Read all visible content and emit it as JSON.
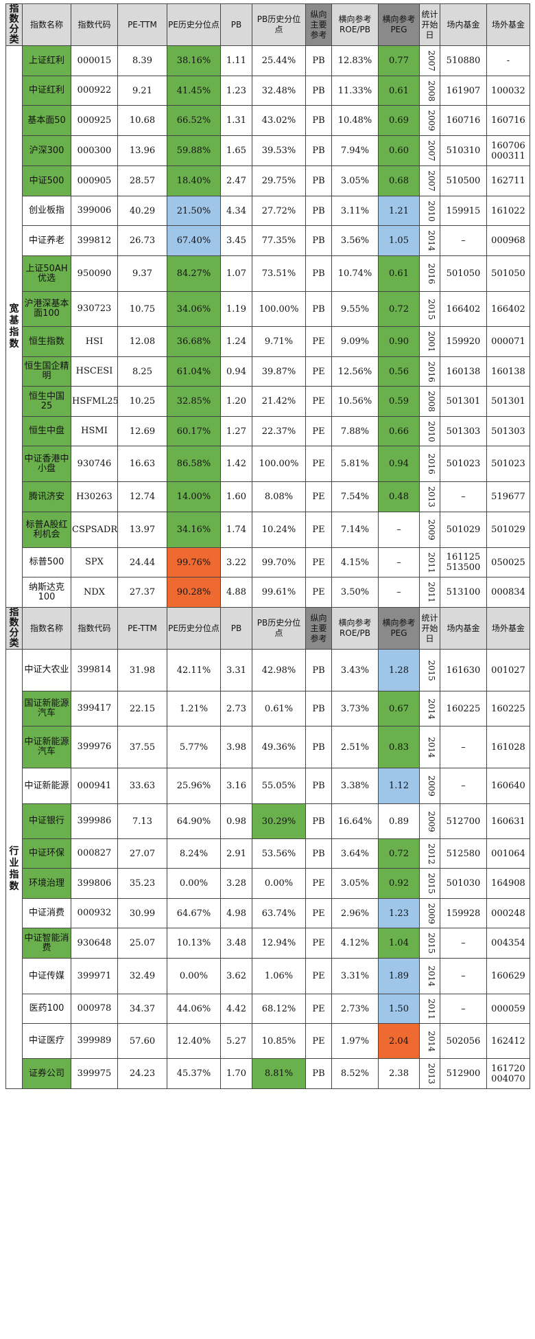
{
  "header": [
    "指数分类",
    "指数名称",
    "指数代码",
    "PE-TTM",
    "PE历史分位点",
    "PB",
    "PB历史分位点",
    "纵向主要参考",
    "横向参考ROE/PB",
    "横向参考PEG",
    "统计开始日",
    "场内基金",
    "场外基金"
  ],
  "sections": [
    {
      "category": "宽基指数",
      "rows": [
        {
          "name": "上证红利",
          "code": "000015",
          "pe": "8.39",
          "pe_pct": "38.16%",
          "pe_pct_color": "g",
          "pb": "1.11",
          "pb_pct": "25.44%",
          "pb_pct_color": "",
          "ref": "PB",
          "roe": "12.83%",
          "peg": "0.77",
          "peg_color": "g",
          "year": "2007",
          "onsite": [
            "510880"
          ],
          "offsite": [
            "-"
          ],
          "name_color": "g"
        },
        {
          "name": "中证红利",
          "code": "000922",
          "pe": "9.21",
          "pe_pct": "41.45%",
          "pe_pct_color": "g",
          "pb": "1.23",
          "pb_pct": "32.48%",
          "pb_pct_color": "",
          "ref": "PB",
          "roe": "11.33%",
          "peg": "0.61",
          "peg_color": "g",
          "year": "2008",
          "onsite": [
            "161907"
          ],
          "offsite": [
            "100032"
          ],
          "name_color": "g"
        },
        {
          "name": "基本面50",
          "code": "000925",
          "pe": "10.68",
          "pe_pct": "66.52%",
          "pe_pct_color": "g",
          "pb": "1.31",
          "pb_pct": "43.02%",
          "pb_pct_color": "",
          "ref": "PB",
          "roe": "10.48%",
          "peg": "0.69",
          "peg_color": "g",
          "year": "2009",
          "onsite": [
            "160716"
          ],
          "offsite": [
            "160716"
          ],
          "name_color": "g"
        },
        {
          "name": "沪深300",
          "code": "000300",
          "pe": "13.96",
          "pe_pct": "59.88%",
          "pe_pct_color": "g",
          "pb": "1.65",
          "pb_pct": "39.53%",
          "pb_pct_color": "",
          "ref": "PB",
          "roe": "7.94%",
          "peg": "0.60",
          "peg_color": "g",
          "year": "2007",
          "onsite": [
            "510310"
          ],
          "offsite": [
            "160706",
            "000311"
          ],
          "name_color": "g"
        },
        {
          "name": "中证500",
          "code": "000905",
          "pe": "28.57",
          "pe_pct": "18.40%",
          "pe_pct_color": "g",
          "pb": "2.47",
          "pb_pct": "29.75%",
          "pb_pct_color": "",
          "ref": "PB",
          "roe": "3.05%",
          "peg": "0.68",
          "peg_color": "g",
          "year": "2007",
          "onsite": [
            "510500"
          ],
          "offsite": [
            "162711"
          ],
          "name_color": "g"
        },
        {
          "name": "创业板指",
          "code": "399006",
          "pe": "40.29",
          "pe_pct": "21.50%",
          "pe_pct_color": "b",
          "pb": "4.34",
          "pb_pct": "27.72%",
          "pb_pct_color": "",
          "ref": "PB",
          "roe": "3.11%",
          "peg": "1.21",
          "peg_color": "b",
          "year": "2010",
          "onsite": [
            "159915"
          ],
          "offsite": [
            "161022"
          ],
          "name_color": ""
        },
        {
          "name": "中证养老",
          "code": "399812",
          "pe": "26.73",
          "pe_pct": "67.40%",
          "pe_pct_color": "b",
          "pb": "3.45",
          "pb_pct": "77.35%",
          "pb_pct_color": "",
          "ref": "PB",
          "roe": "3.56%",
          "peg": "1.05",
          "peg_color": "b",
          "year": "2014",
          "onsite": [
            "–"
          ],
          "offsite": [
            "000968"
          ],
          "name_color": ""
        },
        {
          "name": "上证50AH优选",
          "code": "950090",
          "pe": "9.37",
          "pe_pct": "84.27%",
          "pe_pct_color": "g",
          "pb": "1.07",
          "pb_pct": "73.51%",
          "pb_pct_color": "",
          "ref": "PB",
          "roe": "10.74%",
          "peg": "0.61",
          "peg_color": "g",
          "year": "2016",
          "onsite": [
            "501050"
          ],
          "offsite": [
            "501050"
          ],
          "name_color": "g"
        },
        {
          "name": "沪港深基本面100",
          "code": "930723",
          "pe": "10.75",
          "pe_pct": "34.06%",
          "pe_pct_color": "g",
          "pb": "1.19",
          "pb_pct": "100.00%",
          "pb_pct_color": "",
          "ref": "PB",
          "roe": "9.55%",
          "peg": "0.72",
          "peg_color": "g",
          "year": "2015",
          "onsite": [
            "166402"
          ],
          "offsite": [
            "166402"
          ],
          "name_color": "g"
        },
        {
          "name": "恒生指数",
          "code": "HSI",
          "pe": "12.08",
          "pe_pct": "36.68%",
          "pe_pct_color": "g",
          "pb": "1.24",
          "pb_pct": "9.71%",
          "pb_pct_color": "",
          "ref": "PE",
          "roe": "9.09%",
          "peg": "0.90",
          "peg_color": "g",
          "year": "2001",
          "onsite": [
            "159920"
          ],
          "offsite": [
            "000071"
          ],
          "name_color": "g"
        },
        {
          "name": "恒生国企精明",
          "code": "HSCESI",
          "pe": "8.25",
          "pe_pct": "61.04%",
          "pe_pct_color": "g",
          "pb": "0.94",
          "pb_pct": "39.87%",
          "pb_pct_color": "",
          "ref": "PE",
          "roe": "12.56%",
          "peg": "0.56",
          "peg_color": "g",
          "year": "2016",
          "onsite": [
            "160138"
          ],
          "offsite": [
            "160138"
          ],
          "name_color": "g"
        },
        {
          "name": "恒生中国25",
          "code": "HSFML25",
          "pe": "10.25",
          "pe_pct": "32.85%",
          "pe_pct_color": "g",
          "pb": "1.20",
          "pb_pct": "21.42%",
          "pb_pct_color": "",
          "ref": "PE",
          "roe": "10.56%",
          "peg": "0.59",
          "peg_color": "g",
          "year": "2008",
          "onsite": [
            "501301"
          ],
          "offsite": [
            "501301"
          ],
          "name_color": "g"
        },
        {
          "name": "恒生中盘",
          "code": "HSMI",
          "pe": "12.69",
          "pe_pct": "60.17%",
          "pe_pct_color": "g",
          "pb": "1.27",
          "pb_pct": "22.37%",
          "pb_pct_color": "",
          "ref": "PE",
          "roe": "7.88%",
          "peg": "0.66",
          "peg_color": "g",
          "year": "2010",
          "onsite": [
            "501303"
          ],
          "offsite": [
            "501303"
          ],
          "name_color": "g"
        },
        {
          "name": "中证香港中小盘",
          "code": "930746",
          "pe": "16.63",
          "pe_pct": "86.58%",
          "pe_pct_color": "g",
          "pb": "1.42",
          "pb_pct": "100.00%",
          "pb_pct_color": "",
          "ref": "PE",
          "roe": "5.81%",
          "peg": "0.94",
          "peg_color": "g",
          "year": "2016",
          "onsite": [
            "501023"
          ],
          "offsite": [
            "501023"
          ],
          "name_color": "g"
        },
        {
          "name": "腾讯济安",
          "code": "H30263",
          "pe": "12.74",
          "pe_pct": "14.00%",
          "pe_pct_color": "g",
          "pb": "1.60",
          "pb_pct": "8.08%",
          "pb_pct_color": "",
          "ref": "PE",
          "roe": "7.54%",
          "peg": "0.48",
          "peg_color": "g",
          "year": "2013",
          "onsite": [
            "–"
          ],
          "offsite": [
            "519677"
          ],
          "name_color": "g"
        },
        {
          "name": "标普A股红利机会",
          "code": "CSPSADRP",
          "pe": "13.97",
          "pe_pct": "34.16%",
          "pe_pct_color": "g",
          "pb": "1.74",
          "pb_pct": "10.24%",
          "pb_pct_color": "",
          "ref": "PE",
          "roe": "7.14%",
          "peg": "–",
          "peg_color": "",
          "year": "2009",
          "onsite": [
            "501029"
          ],
          "offsite": [
            "501029"
          ],
          "name_color": "g"
        },
        {
          "name": "标普500",
          "code": "SPX",
          "pe": "24.44",
          "pe_pct": "99.76%",
          "pe_pct_color": "o",
          "pb": "3.22",
          "pb_pct": "99.70%",
          "pb_pct_color": "",
          "ref": "PE",
          "roe": "4.15%",
          "peg": "–",
          "peg_color": "",
          "year": "2011",
          "onsite": [
            "161125",
            "513500"
          ],
          "offsite": [
            "050025"
          ],
          "name_color": ""
        },
        {
          "name": "纳斯达克100",
          "code": "NDX",
          "pe": "27.37",
          "pe_pct": "90.28%",
          "pe_pct_color": "o",
          "pb": "4.88",
          "pb_pct": "99.61%",
          "pb_pct_color": "",
          "ref": "PE",
          "roe": "3.50%",
          "peg": "–",
          "peg_color": "",
          "year": "2011",
          "onsite": [
            "513100"
          ],
          "offsite": [
            "000834"
          ],
          "name_color": ""
        }
      ]
    },
    {
      "category": "行业指数",
      "rows": [
        {
          "name": "中证大农业",
          "code": "399814",
          "pe": "31.98",
          "pe_pct": "42.11%",
          "pe_pct_color": "",
          "pb": "3.31",
          "pb_pct": "42.98%",
          "pb_pct_color": "",
          "ref": "PB",
          "roe": "3.43%",
          "peg": "1.28",
          "peg_color": "b",
          "year": "2015",
          "onsite": [
            "161630"
          ],
          "offsite": [
            "001027"
          ],
          "name_color": ""
        },
        {
          "name": "国证新能源汽车",
          "code": "399417",
          "pe": "22.15",
          "pe_pct": "1.21%",
          "pe_pct_color": "",
          "pb": "2.73",
          "pb_pct": "0.61%",
          "pb_pct_color": "",
          "ref": "PB",
          "roe": "3.73%",
          "peg": "0.67",
          "peg_color": "g",
          "year": "2014",
          "onsite": [
            "160225"
          ],
          "offsite": [
            "160225"
          ],
          "name_color": "g"
        },
        {
          "name": "中证新能源汽车",
          "code": "399976",
          "pe": "37.55",
          "pe_pct": "5.77%",
          "pe_pct_color": "",
          "pb": "3.98",
          "pb_pct": "49.36%",
          "pb_pct_color": "",
          "ref": "PB",
          "roe": "2.51%",
          "peg": "0.83",
          "peg_color": "g",
          "year": "2014",
          "onsite": [
            "–"
          ],
          "offsite": [
            "161028"
          ],
          "name_color": "g"
        },
        {
          "name": "中证新能源",
          "code": "000941",
          "pe": "33.63",
          "pe_pct": "25.96%",
          "pe_pct_color": "",
          "pb": "3.16",
          "pb_pct": "55.05%",
          "pb_pct_color": "",
          "ref": "PB",
          "roe": "3.38%",
          "peg": "1.12",
          "peg_color": "b",
          "year": "2009",
          "onsite": [
            "–"
          ],
          "offsite": [
            "160640"
          ],
          "name_color": ""
        },
        {
          "name": "中证银行",
          "code": "399986",
          "pe": "7.13",
          "pe_pct": "64.90%",
          "pe_pct_color": "",
          "pb": "0.98",
          "pb_pct": "30.29%",
          "pb_pct_color": "g",
          "ref": "PB",
          "roe": "16.64%",
          "peg": "0.89",
          "peg_color": "",
          "year": "2009",
          "onsite": [
            "512700"
          ],
          "offsite": [
            "160631"
          ],
          "name_color": "g"
        },
        {
          "name": "中证环保",
          "code": "000827",
          "pe": "27.07",
          "pe_pct": "8.24%",
          "pe_pct_color": "",
          "pb": "2.91",
          "pb_pct": "53.56%",
          "pb_pct_color": "",
          "ref": "PB",
          "roe": "3.64%",
          "peg": "0.72",
          "peg_color": "g",
          "year": "2012",
          "onsite": [
            "512580"
          ],
          "offsite": [
            "001064"
          ],
          "name_color": "g"
        },
        {
          "name": "环境治理",
          "code": "399806",
          "pe": "35.23",
          "pe_pct": "0.00%",
          "pe_pct_color": "",
          "pb": "3.28",
          "pb_pct": "0.00%",
          "pb_pct_color": "",
          "ref": "PE",
          "roe": "3.05%",
          "peg": "0.92",
          "peg_color": "g",
          "year": "2015",
          "onsite": [
            "501030"
          ],
          "offsite": [
            "164908"
          ],
          "name_color": "g"
        },
        {
          "name": "中证消费",
          "code": "000932",
          "pe": "30.99",
          "pe_pct": "64.67%",
          "pe_pct_color": "",
          "pb": "4.98",
          "pb_pct": "63.74%",
          "pb_pct_color": "",
          "ref": "PE",
          "roe": "2.96%",
          "peg": "1.23",
          "peg_color": "b",
          "year": "2009",
          "onsite": [
            "159928"
          ],
          "offsite": [
            "000248"
          ],
          "name_color": ""
        },
        {
          "name": "中证智能消费",
          "code": "930648",
          "pe": "25.07",
          "pe_pct": "10.13%",
          "pe_pct_color": "",
          "pb": "3.48",
          "pb_pct": "12.94%",
          "pb_pct_color": "",
          "ref": "PE",
          "roe": "4.12%",
          "peg": "1.04",
          "peg_color": "g",
          "year": "2015",
          "onsite": [
            "–"
          ],
          "offsite": [
            "004354"
          ],
          "name_color": "g"
        },
        {
          "name": "中证传媒",
          "code": "399971",
          "pe": "32.49",
          "pe_pct": "0.00%",
          "pe_pct_color": "",
          "pb": "3.62",
          "pb_pct": "1.06%",
          "pb_pct_color": "",
          "ref": "PE",
          "roe": "3.31%",
          "peg": "1.89",
          "peg_color": "b",
          "year": "2014",
          "onsite": [
            "–"
          ],
          "offsite": [
            "160629"
          ],
          "name_color": ""
        },
        {
          "name": "医药100",
          "code": "000978",
          "pe": "34.37",
          "pe_pct": "44.06%",
          "pe_pct_color": "",
          "pb": "4.42",
          "pb_pct": "68.12%",
          "pb_pct_color": "",
          "ref": "PE",
          "roe": "2.73%",
          "peg": "1.50",
          "peg_color": "b",
          "year": "2011",
          "onsite": [
            "–"
          ],
          "offsite": [
            "000059"
          ],
          "name_color": ""
        },
        {
          "name": "中证医疗",
          "code": "399989",
          "pe": "57.60",
          "pe_pct": "12.40%",
          "pe_pct_color": "",
          "pb": "5.27",
          "pb_pct": "10.85%",
          "pb_pct_color": "",
          "ref": "PE",
          "roe": "1.97%",
          "peg": "2.04",
          "peg_color": "o",
          "year": "2014",
          "onsite": [
            "502056"
          ],
          "offsite": [
            "162412"
          ],
          "name_color": ""
        },
        {
          "name": "证券公司",
          "code": "399975",
          "pe": "24.23",
          "pe_pct": "45.37%",
          "pe_pct_color": "",
          "pb": "1.70",
          "pb_pct": "8.81%",
          "pb_pct_color": "g",
          "ref": "PB",
          "roe": "8.52%",
          "peg": "2.38",
          "peg_color": "",
          "year": "2013",
          "onsite": [
            "512900"
          ],
          "offsite": [
            "161720",
            "004070"
          ],
          "name_color": "g"
        }
      ]
    }
  ]
}
